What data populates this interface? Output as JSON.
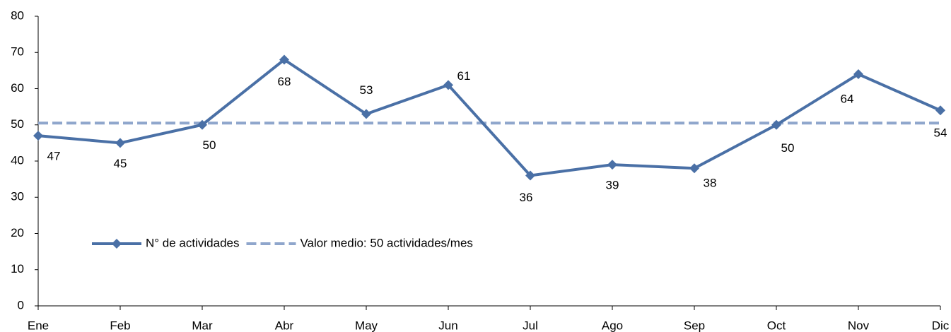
{
  "chart_data": {
    "type": "line",
    "categories": [
      "Ene",
      "Feb",
      "Mar",
      "Abr",
      "May",
      "Jun",
      "Jul",
      "Ago",
      "Sep",
      "Oct",
      "Nov",
      "Dic"
    ],
    "series": [
      {
        "name": "N° de actividades",
        "color": "#4a70a6",
        "style": "solid",
        "marker": "diamond",
        "values": [
          47,
          45,
          50,
          68,
          53,
          61,
          36,
          39,
          38,
          50,
          64,
          54
        ]
      },
      {
        "name": "Valor medio: 50 actividades/mes",
        "color": "#8fa6cc",
        "style": "dashed",
        "values": [
          50.5,
          50.5,
          50.5,
          50.5,
          50.5,
          50.5,
          50.5,
          50.5,
          50.5,
          50.5,
          50.5,
          50.5
        ]
      }
    ],
    "ylim": [
      0,
      80
    ],
    "yticks": [
      0,
      10,
      20,
      30,
      40,
      50,
      60,
      70,
      80
    ],
    "grid": false,
    "legend": "lower left",
    "data_labels_series": 0
  }
}
